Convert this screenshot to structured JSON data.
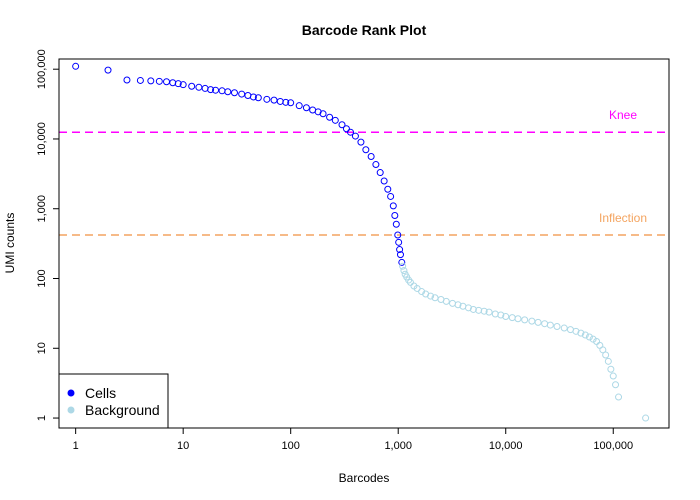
{
  "chart_data": {
    "type": "scatter",
    "title": "Barcode Rank Plot",
    "xlabel": "Barcodes",
    "ylabel": "UMI counts",
    "x_scale": "log",
    "y_scale": "log",
    "xlim": [
      0.7,
      330000
    ],
    "ylim": [
      0.72,
      140000
    ],
    "grid": false,
    "legend_position": "bottom-left",
    "x_ticks": [
      {
        "value": 1,
        "label": "1"
      },
      {
        "value": 10,
        "label": "10"
      },
      {
        "value": 100,
        "label": "100"
      },
      {
        "value": 1000,
        "label": "1,000"
      },
      {
        "value": 10000,
        "label": "10,000"
      },
      {
        "value": 100000,
        "label": "100,000"
      }
    ],
    "y_ticks": [
      {
        "value": 1,
        "label": "1"
      },
      {
        "value": 10,
        "label": "10"
      },
      {
        "value": 100,
        "label": "100"
      },
      {
        "value": 1000,
        "label": "1,000"
      },
      {
        "value": 10000,
        "label": "10,000"
      },
      {
        "value": 100000,
        "label": "100,000"
      }
    ],
    "thresholds": [
      {
        "name": "Knee",
        "value": 12500,
        "color": "#ff00ff"
      },
      {
        "name": "Inflection",
        "value": 420,
        "color": "#f4a460"
      }
    ],
    "series": [
      {
        "name": "Cells",
        "color": "#0000ff",
        "x": [
          1,
          2,
          3,
          4,
          5,
          6,
          7,
          8,
          9,
          10,
          12,
          14,
          16,
          18,
          20,
          23,
          26,
          30,
          35,
          40,
          45,
          50,
          60,
          70,
          80,
          90,
          100,
          120,
          140,
          160,
          180,
          200,
          230,
          260,
          300,
          330,
          360,
          400,
          450,
          500,
          560,
          620,
          680,
          740,
          800,
          850,
          900,
          930,
          960,
          990,
          1010,
          1030,
          1050,
          1080
        ],
        "y": [
          110000,
          97000,
          70000,
          69000,
          68000,
          67000,
          66000,
          64000,
          62000,
          60000,
          57000,
          55000,
          53000,
          51000,
          50000,
          49000,
          47500,
          46000,
          44000,
          42000,
          40000,
          39000,
          37000,
          36000,
          34500,
          33500,
          33000,
          30000,
          28000,
          26000,
          24500,
          23000,
          20500,
          18500,
          16000,
          14000,
          12500,
          11000,
          9000,
          7000,
          5600,
          4300,
          3300,
          2500,
          1900,
          1500,
          1100,
          800,
          600,
          420,
          330,
          260,
          220,
          170
        ]
      },
      {
        "name": "Background",
        "color": "#add8e6",
        "x": [
          1100,
          1130,
          1160,
          1200,
          1250,
          1300,
          1400,
          1500,
          1650,
          1800,
          2000,
          2200,
          2500,
          2800,
          3200,
          3600,
          4000,
          4500,
          5000,
          5600,
          6300,
          7000,
          8000,
          9000,
          10000,
          11500,
          13000,
          15000,
          17500,
          20000,
          23000,
          26000,
          30000,
          35000,
          40000,
          45000,
          50000,
          55000,
          60000,
          65000,
          70000,
          75000,
          80000,
          85000,
          90000,
          95000,
          100000,
          105000,
          112000,
          200000
        ],
        "y": [
          150,
          130,
          115,
          105,
          95,
          88,
          78,
          72,
          65,
          60,
          56,
          53,
          50,
          47,
          44,
          42,
          40,
          38,
          36,
          35,
          34,
          33,
          31,
          30,
          28.5,
          27.5,
          26.5,
          25.5,
          24.5,
          23.5,
          22.5,
          21.5,
          20.5,
          19.5,
          18.5,
          17.5,
          16.5,
          15.5,
          14.5,
          13.5,
          12.5,
          11,
          9.5,
          8,
          6.5,
          5,
          4,
          3,
          2,
          1
        ]
      }
    ]
  }
}
